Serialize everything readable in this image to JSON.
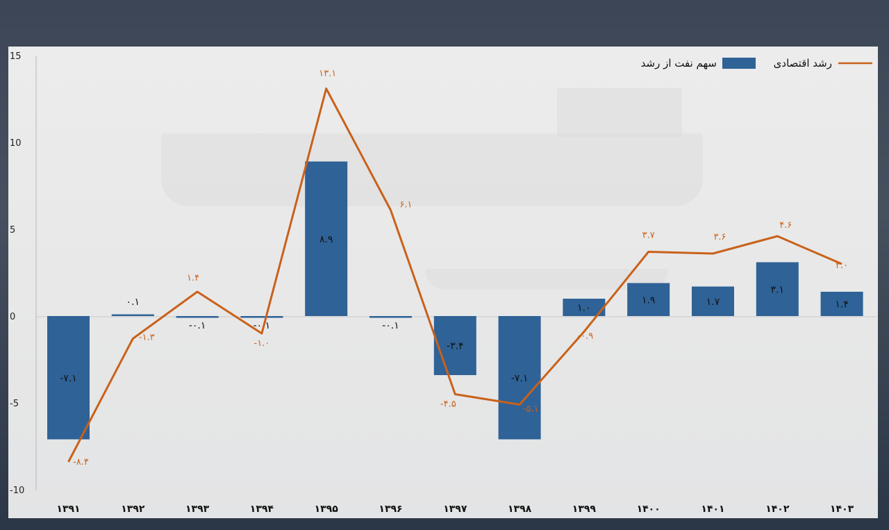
{
  "chart_data": {
    "type": "bar+line",
    "categories": [
      "۱۳۹۱",
      "۱۳۹۲",
      "۱۳۹۳",
      "۱۳۹۴",
      "۱۳۹۵",
      "۱۳۹۶",
      "۱۳۹۷",
      "۱۳۹۸",
      "۱۳۹۹",
      "۱۴۰۰",
      "۱۴۰۱",
      "۱۴۰۲",
      "۱۴۰۳"
    ],
    "ylim": [
      -10,
      15
    ],
    "yticks": [
      15,
      10,
      5,
      0,
      -5,
      -10
    ],
    "ytick_labels": [
      "15",
      "10",
      "5",
      "0",
      "-5",
      "-10"
    ],
    "series": [
      {
        "name": "سهم نفت از رشد",
        "kind": "bar",
        "color": "#2f6296",
        "values": [
          -7.1,
          0.1,
          -0.1,
          -0.1,
          8.9,
          -0.1,
          -3.4,
          -7.1,
          1.0,
          1.9,
          1.7,
          3.1,
          1.4
        ],
        "labels": [
          "-۷.۱",
          "۰.۱",
          "-۰.۱",
          "-۰.۱",
          "۸.۹",
          "-۰.۱",
          "-۳.۴",
          "-۷.۱",
          "۱.۰",
          "۱.۹",
          "۱.۷",
          "۳.۱",
          "۱.۴"
        ]
      },
      {
        "name": "رشد اقتصادی",
        "kind": "line",
        "color": "#c9611a",
        "values": [
          -8.4,
          -1.3,
          1.4,
          -1.0,
          13.1,
          6.1,
          -4.5,
          -5.1,
          -0.9,
          3.7,
          3.6,
          4.6,
          3.0
        ],
        "labels": [
          "-۸.۴",
          "-۱.۳",
          "۱.۴",
          "-۱.۰",
          "۱۳.۱",
          "۶.۱",
          "-۴.۵",
          "-۵.۱",
          "-۰.۹",
          "۳.۷",
          "۳.۶",
          "۴.۶",
          "۳.۰"
        ]
      }
    ],
    "legend_position": "top-right",
    "grid": false
  }
}
